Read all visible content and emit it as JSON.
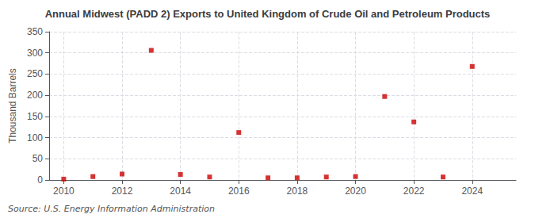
{
  "chart_data": {
    "type": "scatter",
    "title": "Annual Midwest (PADD 2) Exports to United Kingdom of Crude Oil and Petroleum Products",
    "ylabel": "Thousand Barrels",
    "source": "Source: U.S. Energy Information Administration",
    "x": [
      2010,
      2011,
      2012,
      2013,
      2014,
      2015,
      2016,
      2017,
      2018,
      2019,
      2020,
      2021,
      2022,
      2023,
      2024
    ],
    "values": [
      2,
      8,
      14,
      306,
      13,
      7,
      112,
      5,
      5,
      7,
      8,
      197,
      137,
      7,
      268
    ],
    "color": "#cc0000",
    "marker": "square",
    "xlim": [
      2009.5,
      2025.5
    ],
    "xticks": [
      2010,
      2012,
      2014,
      2016,
      2018,
      2020,
      2022,
      2024
    ],
    "ylim": [
      0,
      350
    ],
    "yticks": [
      0,
      50,
      100,
      150,
      200,
      250,
      300,
      350
    ],
    "grid": true
  }
}
